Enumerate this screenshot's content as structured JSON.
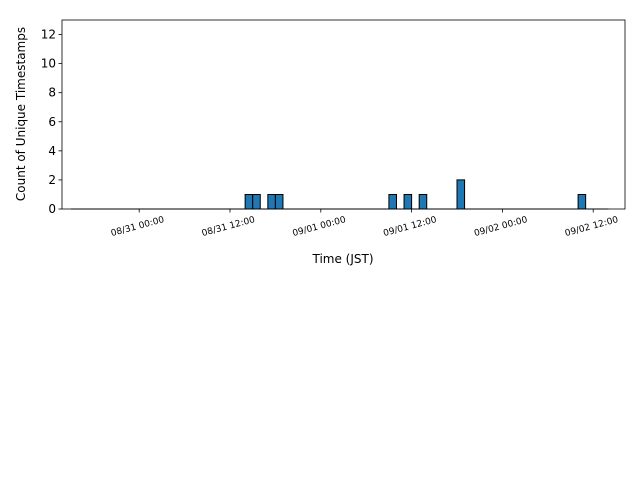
{
  "chart_data": {
    "type": "histogram",
    "xlabel": "Time (JST)",
    "ylabel": "Count of Unique Timestamps",
    "bins": [
      -9,
      -8,
      -7,
      -6,
      -5,
      -4,
      -3,
      -2,
      -1,
      0,
      1,
      2,
      3,
      4,
      5,
      6,
      7,
      8,
      9,
      10,
      11,
      12,
      13,
      14,
      15,
      16,
      17,
      18,
      19,
      20,
      21,
      22,
      23,
      24,
      25,
      26,
      27,
      28,
      29,
      30,
      31,
      32,
      33,
      34,
      35,
      36,
      37,
      38,
      39,
      40,
      41,
      42,
      43,
      44,
      45,
      46,
      47,
      48,
      49,
      50,
      51,
      52,
      53,
      54,
      55,
      56,
      57,
      58,
      59,
      60,
      61,
      62
    ],
    "values": [
      0,
      0,
      0,
      0,
      0,
      0,
      0,
      0,
      0,
      0,
      0,
      0,
      0,
      0,
      0,
      0,
      0,
      0,
      0,
      0,
      0,
      0,
      0,
      1,
      1,
      0,
      1,
      1,
      0,
      0,
      0,
      0,
      0,
      0,
      0,
      0,
      0,
      0,
      0,
      0,
      0,
      0,
      1,
      0,
      1,
      0,
      1,
      0,
      0,
      0,
      0,
      2,
      0,
      0,
      0,
      0,
      0,
      0,
      0,
      0,
      0,
      0,
      0,
      0,
      0,
      0,
      0,
      1,
      0,
      0,
      0
    ],
    "color": "#1f77b4",
    "edgecolor": "#000000",
    "xlim": [
      -10.2,
      64.2
    ],
    "xticks": [
      {
        "value": 0,
        "label": "08/31 00:00"
      },
      {
        "value": 12,
        "label": "08/31 12:00"
      },
      {
        "value": 24,
        "label": "09/01 00:00"
      },
      {
        "value": 36,
        "label": "09/01 12:00"
      },
      {
        "value": 48,
        "label": "09/02 00:00"
      },
      {
        "value": 60,
        "label": "09/02 12:00"
      }
    ],
    "ylim": [
      0,
      13
    ],
    "yticks": [
      0,
      2,
      4,
      6,
      8,
      10,
      12
    ],
    "grid": false
  }
}
